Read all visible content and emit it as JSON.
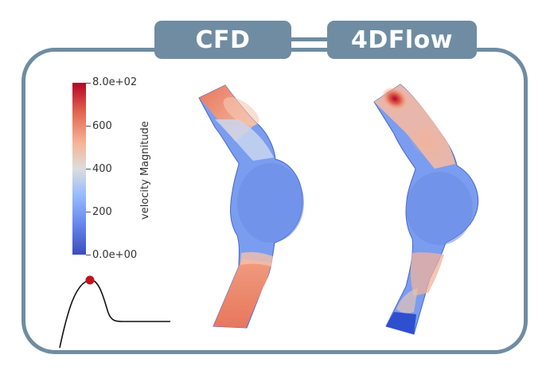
{
  "labels": {
    "cfd": "CFD",
    "flow4d": "4DFlow"
  },
  "colorbar": {
    "title": "velocity Magnitude",
    "ticks": [
      "8.0e+02",
      "600",
      "400",
      "200",
      "0.0e+00"
    ],
    "range": [
      0,
      800
    ],
    "colormap": [
      "#3b4cc0",
      "#dddddd",
      "#b40426"
    ]
  },
  "colors": {
    "frame": "#6f8ca2",
    "marker": "#c0141e"
  }
}
